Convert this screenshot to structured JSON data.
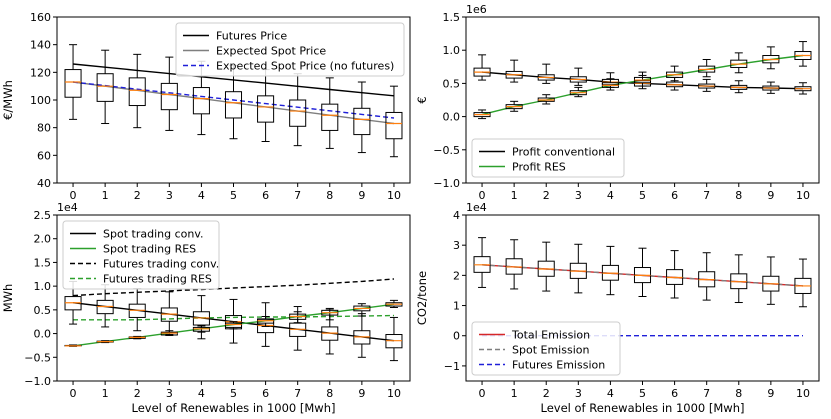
{
  "chart_data": [
    {
      "type": "box",
      "ylabel": "€/MWh",
      "xlabel": "",
      "xlim": [
        -0.5,
        10.5
      ],
      "ylim": [
        40,
        160
      ],
      "x_ticks": [
        "0",
        "1",
        "2",
        "3",
        "4",
        "5",
        "6",
        "7",
        "8",
        "9",
        "10"
      ],
      "y_ticks": [
        "40",
        "60",
        "80",
        "100",
        "120",
        "140",
        "160"
      ],
      "y_exponent": "",
      "legend": {
        "position": "upper-right",
        "entries": [
          {
            "label": "Futures Price",
            "color": "#000000",
            "style": "solid"
          },
          {
            "label": "Expected Spot Price",
            "color": "#7f7f7f",
            "style": "solid"
          },
          {
            "label": "Expected Spot Price (no futures)",
            "color": "#1f1fd8",
            "style": "dashed"
          }
        ]
      },
      "lines": [
        {
          "name": "Futures Price",
          "color": "#000000",
          "style": "solid",
          "x": [
            0,
            1,
            2,
            3,
            4,
            5,
            6,
            7,
            8,
            9,
            10
          ],
          "y": [
            126,
            123.7,
            121.4,
            119.1,
            116.8,
            114.5,
            112.2,
            109.9,
            107.6,
            105.3,
            103
          ]
        },
        {
          "name": "Expected Spot Price",
          "color": "#7f7f7f",
          "style": "solid",
          "x": [
            0,
            1,
            2,
            3,
            4,
            5,
            6,
            7,
            8,
            9,
            10
          ],
          "y": [
            113,
            110,
            107,
            104,
            101,
            98,
            95,
            92,
            89,
            86,
            83
          ]
        },
        {
          "name": "Expected Spot Price (no futures)",
          "color": "#1f1fd8",
          "style": "dashed",
          "x": [
            0,
            1,
            2,
            3,
            4,
            5,
            6,
            7,
            8,
            9,
            10
          ],
          "y": [
            113,
            110.4,
            107.8,
            105.2,
            102.6,
            100,
            97.4,
            94.8,
            92.2,
            89.6,
            87
          ]
        }
      ],
      "box_series": [
        {
          "name": "Spot Price",
          "color": "#000000",
          "median_color": "#ff7f0e",
          "x": [
            0,
            1,
            2,
            3,
            4,
            5,
            6,
            7,
            8,
            9,
            10
          ],
          "whisker_low": [
            86,
            83,
            80,
            78,
            75,
            72,
            70,
            67,
            65,
            62,
            59
          ],
          "q1": [
            102,
            99,
            96,
            93,
            90,
            87,
            84,
            81,
            78,
            75,
            72
          ],
          "median": [
            113,
            110,
            107,
            104,
            101,
            98,
            95,
            92,
            89,
            86,
            83
          ],
          "q3": [
            122,
            119,
            116,
            112,
            109,
            106,
            103,
            100,
            97,
            94,
            91
          ],
          "whisker_high": [
            140,
            136,
            133,
            131,
            128,
            125,
            122,
            119,
            116,
            113,
            110
          ]
        }
      ]
    },
    {
      "type": "box",
      "ylabel": "€",
      "xlabel": "",
      "xlim": [
        -0.5,
        10.5
      ],
      "ylim": [
        -1.0,
        1.5
      ],
      "x_ticks": [
        "0",
        "1",
        "2",
        "3",
        "4",
        "5",
        "6",
        "7",
        "8",
        "9",
        "10"
      ],
      "y_ticks": [
        "−1.0",
        "−0.5",
        "0.0",
        "0.5",
        "1.0",
        "1.5"
      ],
      "y_exponent": "1e6",
      "legend": {
        "position": "lower-left",
        "entries": [
          {
            "label": "Profit conventional",
            "color": "#000000",
            "style": "solid"
          },
          {
            "label": "Profit RES",
            "color": "#2ca02c",
            "style": "solid"
          }
        ]
      },
      "lines": [
        {
          "name": "Profit conventional",
          "color": "#000000",
          "style": "solid",
          "x": [
            0,
            1,
            2,
            3,
            4,
            5,
            6,
            7,
            8,
            9,
            10
          ],
          "y": [
            0.67,
            0.63,
            0.59,
            0.56,
            0.52,
            0.5,
            0.48,
            0.46,
            0.44,
            0.43,
            0.42
          ]
        },
        {
          "name": "Profit RES",
          "color": "#2ca02c",
          "style": "solid",
          "x": [
            0,
            1,
            2,
            3,
            4,
            5,
            6,
            7,
            8,
            9,
            10
          ],
          "y": [
            0.03,
            0.15,
            0.25,
            0.36,
            0.47,
            0.55,
            0.63,
            0.71,
            0.79,
            0.86,
            0.92
          ]
        }
      ],
      "box_series": [
        {
          "name": "Profit conventional",
          "color": "#000000",
          "median_color": "#ff7f0e",
          "x": [
            0,
            1,
            2,
            3,
            4,
            5,
            6,
            7,
            8,
            9,
            10
          ],
          "whisker_low": [
            0.55,
            0.52,
            0.5,
            0.47,
            0.44,
            0.42,
            0.4,
            0.38,
            0.36,
            0.35,
            0.34
          ],
          "q1": [
            0.61,
            0.58,
            0.55,
            0.52,
            0.48,
            0.46,
            0.45,
            0.43,
            0.41,
            0.4,
            0.39
          ],
          "median": [
            0.67,
            0.63,
            0.59,
            0.56,
            0.52,
            0.5,
            0.48,
            0.46,
            0.44,
            0.43,
            0.42
          ],
          "q3": [
            0.73,
            0.68,
            0.63,
            0.6,
            0.56,
            0.54,
            0.52,
            0.49,
            0.47,
            0.46,
            0.45
          ],
          "whisker_high": [
            0.93,
            0.85,
            0.79,
            0.73,
            0.66,
            0.62,
            0.59,
            0.56,
            0.54,
            0.52,
            0.51
          ]
        },
        {
          "name": "Profit RES",
          "color": "#000000",
          "median_color": "#ff7f0e",
          "x": [
            0,
            1,
            2,
            3,
            4,
            5,
            6,
            7,
            8,
            9,
            10
          ],
          "whisker_low": [
            -0.03,
            0.08,
            0.19,
            0.3,
            0.4,
            0.46,
            0.54,
            0.6,
            0.66,
            0.72,
            0.76
          ],
          "q1": [
            0.0,
            0.12,
            0.23,
            0.33,
            0.44,
            0.51,
            0.59,
            0.67,
            0.74,
            0.81,
            0.86
          ],
          "median": [
            0.03,
            0.15,
            0.25,
            0.36,
            0.47,
            0.55,
            0.63,
            0.71,
            0.79,
            0.86,
            0.92
          ],
          "q3": [
            0.06,
            0.18,
            0.28,
            0.39,
            0.51,
            0.59,
            0.67,
            0.76,
            0.85,
            0.92,
            0.98
          ],
          "whisker_high": [
            0.1,
            0.23,
            0.33,
            0.44,
            0.57,
            0.67,
            0.76,
            0.86,
            0.96,
            1.05,
            1.13
          ]
        }
      ]
    },
    {
      "type": "box",
      "ylabel": "MWh",
      "xlabel": "Level of Renewables in 1000 [Mwh]",
      "xlim": [
        -0.5,
        10.5
      ],
      "ylim": [
        -1.0,
        2.5
      ],
      "x_ticks": [
        "0",
        "1",
        "2",
        "3",
        "4",
        "5",
        "6",
        "7",
        "8",
        "9",
        "10"
      ],
      "y_ticks": [
        "−1.0",
        "−0.5",
        "0.0",
        "0.5",
        "1.0",
        "1.5",
        "2.0",
        "2.5"
      ],
      "y_exponent": "1e4",
      "legend": {
        "position": "upper-left",
        "entries": [
          {
            "label": "Spot trading conv.",
            "color": "#000000",
            "style": "solid"
          },
          {
            "label": "Spot trading RES",
            "color": "#2ca02c",
            "style": "solid"
          },
          {
            "label": "Futures trading conv.",
            "color": "#000000",
            "style": "dashed"
          },
          {
            "label": "Futures trading RES",
            "color": "#2ca02c",
            "style": "dashed"
          }
        ]
      },
      "lines": [
        {
          "name": "Spot trading conv.",
          "color": "#000000",
          "style": "solid",
          "x": [
            0,
            1,
            2,
            3,
            4,
            5,
            6,
            7,
            8,
            9,
            10
          ],
          "y": [
            0.65,
            0.57,
            0.49,
            0.41,
            0.33,
            0.25,
            0.17,
            0.09,
            0.01,
            -0.07,
            -0.15
          ]
        },
        {
          "name": "Spot trading RES",
          "color": "#2ca02c",
          "style": "solid",
          "x": [
            0,
            1,
            2,
            3,
            4,
            5,
            6,
            7,
            8,
            9,
            10
          ],
          "y": [
            -0.26,
            -0.17,
            -0.08,
            0.01,
            0.1,
            0.19,
            0.27,
            0.36,
            0.44,
            0.53,
            0.62
          ]
        },
        {
          "name": "Futures trading conv.",
          "color": "#000000",
          "style": "dashed",
          "x": [
            0,
            1,
            2,
            3,
            4,
            5,
            6,
            7,
            8,
            9,
            10
          ],
          "y": [
            0.8,
            0.84,
            0.87,
            0.9,
            0.93,
            0.96,
            0.99,
            1.02,
            1.06,
            1.1,
            1.15
          ]
        },
        {
          "name": "Futures trading RES",
          "color": "#2ca02c",
          "style": "dashed",
          "x": [
            0,
            1,
            2,
            3,
            4,
            5,
            6,
            7,
            8,
            9,
            10
          ],
          "y": [
            0.29,
            0.29,
            0.29,
            0.31,
            0.33,
            0.34,
            0.35,
            0.35,
            0.36,
            0.37,
            0.38
          ]
        }
      ],
      "box_series": [
        {
          "name": "Spot trading conv.",
          "color": "#000000",
          "median_color": "#ff7f0e",
          "x": [
            0,
            1,
            2,
            3,
            4,
            5,
            6,
            7,
            8,
            9,
            10
          ],
          "whisker_low": [
            0.2,
            0.14,
            0.06,
            -0.02,
            -0.11,
            -0.2,
            -0.27,
            -0.35,
            -0.43,
            -0.5,
            -0.57
          ],
          "q1": [
            0.5,
            0.42,
            0.34,
            0.26,
            0.18,
            0.1,
            0.02,
            -0.06,
            -0.14,
            -0.22,
            -0.3
          ],
          "median": [
            0.65,
            0.57,
            0.49,
            0.41,
            0.33,
            0.25,
            0.17,
            0.09,
            0.01,
            -0.07,
            -0.15
          ],
          "q3": [
            0.78,
            0.7,
            0.62,
            0.54,
            0.46,
            0.38,
            0.3,
            0.22,
            0.14,
            0.06,
            -0.02
          ],
          "whisker_high": [
            1.1,
            1.03,
            0.95,
            0.88,
            0.8,
            0.72,
            0.65,
            0.57,
            0.5,
            0.42,
            0.34
          ]
        },
        {
          "name": "Spot trading RES",
          "color": "#000000",
          "median_color": "#ff7f0e",
          "x": [
            0,
            1,
            2,
            3,
            4,
            5,
            6,
            7,
            8,
            9,
            10
          ],
          "whisker_low": [
            -0.27,
            -0.19,
            -0.11,
            -0.04,
            0.03,
            0.1,
            0.15,
            0.23,
            0.29,
            0.37,
            0.55
          ],
          "q1": [
            -0.26,
            -0.18,
            -0.1,
            -0.03,
            0.05,
            0.13,
            0.22,
            0.3,
            0.39,
            0.48,
            0.58
          ],
          "median": [
            -0.26,
            -0.17,
            -0.08,
            0.01,
            0.1,
            0.19,
            0.27,
            0.36,
            0.44,
            0.53,
            0.62
          ],
          "q3": [
            -0.25,
            -0.16,
            -0.07,
            0.03,
            0.13,
            0.22,
            0.31,
            0.41,
            0.49,
            0.58,
            0.65
          ],
          "whisker_high": [
            -0.24,
            -0.15,
            -0.06,
            0.06,
            0.16,
            0.25,
            0.36,
            0.46,
            0.53,
            0.63,
            0.7
          ]
        }
      ]
    },
    {
      "type": "box",
      "ylabel": "CO2/tone",
      "xlabel": "Level of Renewables in 1000 [Mwh]",
      "xlim": [
        -0.5,
        10.5
      ],
      "ylim": [
        -1.5,
        4
      ],
      "x_ticks": [
        "0",
        "1",
        "2",
        "3",
        "4",
        "5",
        "6",
        "7",
        "8",
        "9",
        "10"
      ],
      "y_ticks": [
        "−1",
        "0",
        "1",
        "2",
        "3",
        "4"
      ],
      "y_exponent": "1e4",
      "legend": {
        "position": "lower-left",
        "entries": [
          {
            "label": "Total Emission",
            "color": "#d62728",
            "style": "solid"
          },
          {
            "label": "Spot Emission",
            "color": "#7f7f7f",
            "style": "dashed"
          },
          {
            "label": "Futures Emission",
            "color": "#1f1fd8",
            "style": "dashed"
          }
        ]
      },
      "lines": [
        {
          "name": "Total Emission",
          "color": "#d62728",
          "style": "solid",
          "x": [
            0,
            1,
            2,
            3,
            4,
            5,
            6,
            7,
            8,
            9,
            10
          ],
          "y": [
            2.35,
            2.28,
            2.21,
            2.14,
            2.07,
            2.0,
            1.93,
            1.86,
            1.79,
            1.72,
            1.65
          ]
        },
        {
          "name": "Spot Emission",
          "color": "#7f7f7f",
          "style": "dashed",
          "x": [
            0,
            1,
            2,
            3,
            4,
            5,
            6,
            7,
            8,
            9,
            10
          ],
          "y": [
            2.35,
            2.28,
            2.21,
            2.14,
            2.07,
            2.0,
            1.93,
            1.86,
            1.79,
            1.72,
            1.65
          ]
        },
        {
          "name": "Futures Emission",
          "color": "#1f1fd8",
          "style": "dashed",
          "x": [
            0,
            1,
            2,
            3,
            4,
            5,
            6,
            7,
            8,
            9,
            10
          ],
          "y": [
            0,
            0,
            0,
            0,
            0,
            0,
            0,
            0,
            0,
            0,
            0
          ]
        }
      ],
      "box_series": [
        {
          "name": "Total Emission",
          "color": "#000000",
          "median_color": "#ff7f0e",
          "x": [
            0,
            1,
            2,
            3,
            4,
            5,
            6,
            7,
            8,
            9,
            10
          ],
          "whisker_low": [
            1.6,
            1.55,
            1.48,
            1.42,
            1.36,
            1.3,
            1.25,
            1.18,
            1.1,
            1.04,
            0.96
          ],
          "q1": [
            2.1,
            2.04,
            1.97,
            1.9,
            1.84,
            1.76,
            1.7,
            1.62,
            1.56,
            1.48,
            1.4
          ],
          "median": [
            2.35,
            2.28,
            2.21,
            2.14,
            2.07,
            2.0,
            1.93,
            1.86,
            1.79,
            1.72,
            1.65
          ],
          "q3": [
            2.62,
            2.55,
            2.47,
            2.4,
            2.33,
            2.26,
            2.19,
            2.12,
            2.05,
            1.97,
            1.9
          ],
          "whisker_high": [
            3.25,
            3.18,
            3.1,
            3.03,
            2.96,
            2.9,
            2.82,
            2.75,
            2.68,
            2.61,
            2.54
          ]
        }
      ]
    }
  ]
}
